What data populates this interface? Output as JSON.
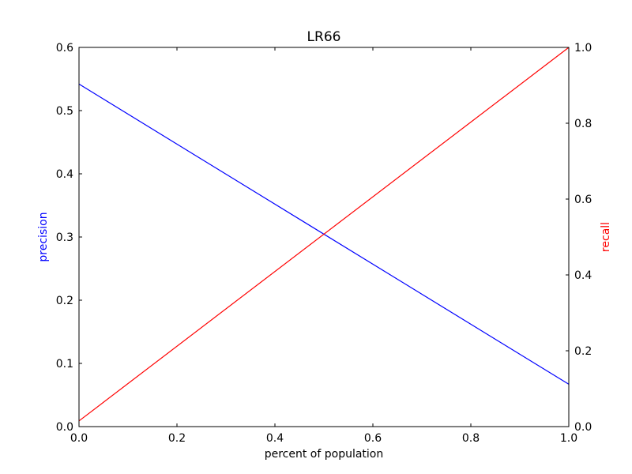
{
  "chart_data": {
    "type": "line",
    "title": "LR66",
    "xlabel": "percent of population",
    "ylabel_left": "precision",
    "ylabel_right": "recall",
    "xlim": [
      0.0,
      1.0
    ],
    "ylim_left": [
      0.0,
      0.6
    ],
    "ylim_right": [
      0.0,
      1.0
    ],
    "x_ticks": [
      "0.0",
      "0.2",
      "0.4",
      "0.6",
      "0.8",
      "1.0"
    ],
    "y_left_ticks": [
      "0.0",
      "0.1",
      "0.2",
      "0.3",
      "0.4",
      "0.5",
      "0.6"
    ],
    "y_right_ticks": [
      "0.0",
      "0.2",
      "0.4",
      "0.6",
      "0.8",
      "1.0"
    ],
    "grid": false,
    "series": [
      {
        "axis": "left",
        "color": "#0000ff",
        "x": [
          0.0,
          1.0
        ],
        "y": [
          0.542,
          0.067
        ]
      },
      {
        "axis": "right",
        "color": "#ff0000",
        "x": [
          0.0,
          1.0
        ],
        "y": [
          0.015,
          1.0
        ]
      }
    ],
    "colors": {
      "precision_label": "#0000ff",
      "recall_label": "#ff0000"
    }
  }
}
